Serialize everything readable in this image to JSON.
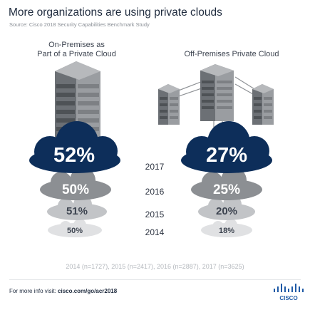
{
  "title": "More organizations are using private clouds",
  "source": "Source: Cisco 2018 Security Capabilities Benchmark Study",
  "columns": [
    {
      "heading_line1": "On-Premises as",
      "heading_line2": "Part of a Private Cloud",
      "values": [
        "52%",
        "50%",
        "51%",
        "50%"
      ]
    },
    {
      "heading_line1": "Off-Premises Private Cloud",
      "heading_line2": "",
      "values": [
        "27%",
        "25%",
        "20%",
        "18%"
      ]
    }
  ],
  "years": [
    "2017",
    "2016",
    "2015",
    "2014"
  ],
  "footnote": "2014 (n=1727), 2015 (n=2417), 2016 (n=2887), 2017 (n=3625)",
  "footer": {
    "prefix": "For more info visit: ",
    "link": "cisco.com/go/acr2018"
  },
  "logo_text": "CISCO",
  "colors": {
    "navy": "#0d2e5a",
    "dark_gray": "#8c8f93",
    "mid_gray": "#c2c4c7",
    "light_gray": "#e0e1e3"
  }
}
